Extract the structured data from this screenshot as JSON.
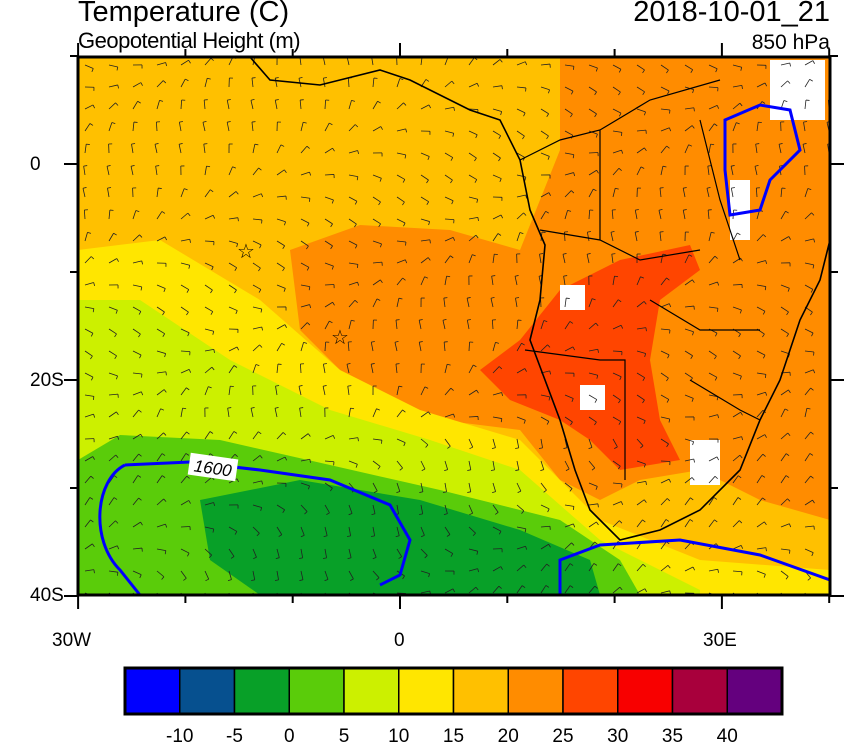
{
  "header": {
    "title": "Temperature (C)",
    "subtitle": "Geopotential Height (m)",
    "datetime": "2018-10-01_21",
    "level": "850 hPa"
  },
  "axes": {
    "lat_labels": [
      "0",
      "20S",
      "40S"
    ],
    "lon_labels": [
      "30W",
      "0",
      "30E"
    ]
  },
  "contour_label": "1600",
  "colorbar": {
    "colors": [
      "#0000FF",
      "#06508F",
      "#08A028",
      "#5ACC0A",
      "#CCF000",
      "#FFE600",
      "#FFC000",
      "#FF8C00",
      "#FF4500",
      "#F80000",
      "#A8003C",
      "#64007E"
    ],
    "labels": [
      "-10",
      "-5",
      "0",
      "5",
      "10",
      "15",
      "20",
      "25",
      "30",
      "35",
      "40"
    ]
  }
}
